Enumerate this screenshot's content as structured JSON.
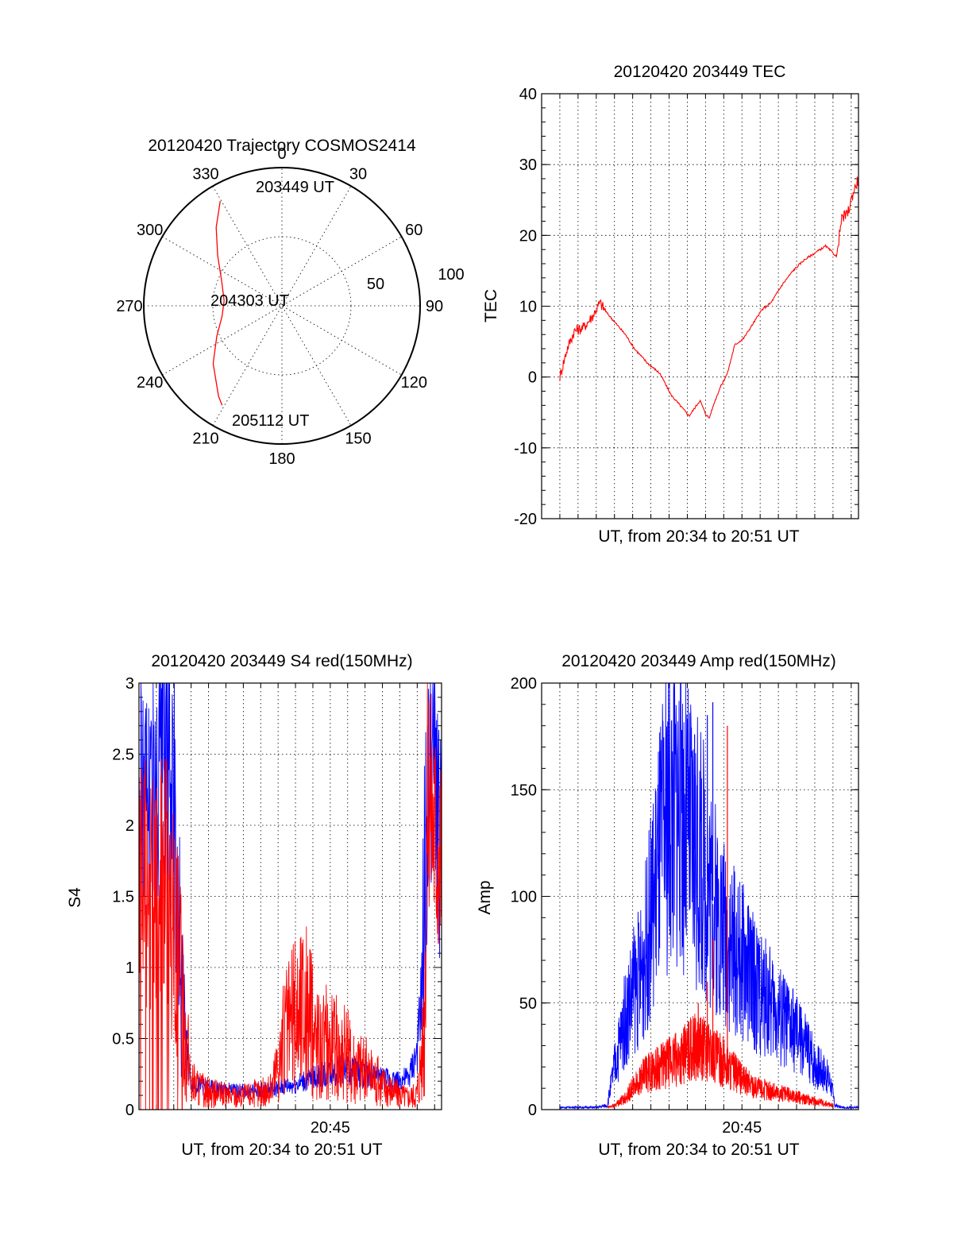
{
  "chart_data": [
    {
      "type": "polar",
      "title": "20120420 Trajectory COSMOS2414",
      "azimuth_labels": [
        "0",
        "30",
        "60",
        "90",
        "120",
        "150",
        "180",
        "210",
        "240",
        "270",
        "300",
        "330"
      ],
      "ring_labels": [
        "50",
        "100"
      ],
      "rlim": [
        0,
        100
      ],
      "trajectory": {
        "color": "#ff0000",
        "points_az_r": [
          [
            -30.5,
            88
          ],
          [
            -40,
            74
          ],
          [
            -52,
            59
          ],
          [
            -68,
            47
          ],
          [
            -85,
            42
          ],
          [
            -100,
            44
          ],
          [
            -115,
            52
          ],
          [
            -130,
            65
          ],
          [
            -145,
            80
          ],
          [
            -149,
            84
          ]
        ]
      },
      "annotations": [
        "203449 UT",
        "204303 UT",
        "205112 UT"
      ]
    },
    {
      "type": "line",
      "title": "20120420 203449 TEC",
      "xlabel": "UT, from 20:34 to 20:51 UT",
      "ylabel": "TEC",
      "xlim": [
        34.0,
        51.4
      ],
      "ylim": [
        -20,
        40
      ],
      "yticks": [
        "-20",
        "-10",
        "0",
        "10",
        "20",
        "30",
        "40"
      ],
      "grid": true,
      "series": [
        {
          "color": "#ff0000",
          "x": [
            35.0,
            35.4,
            35.8,
            36.3,
            36.8,
            37.2,
            37.6,
            38.1,
            38.6,
            39.1,
            39.8,
            40.5,
            41.1,
            41.6,
            42.1,
            42.7,
            43.0,
            43.2,
            43.5,
            43.8,
            44.2,
            44.6,
            45.1,
            45.6,
            46.1,
            46.6,
            47.2,
            47.8,
            48.4,
            49.0,
            49.6,
            50.2,
            50.4,
            50.5,
            50.8,
            51.1,
            51.4
          ],
          "y": [
            0.0,
            4.0,
            6.5,
            7.0,
            8.6,
            10.5,
            9.0,
            7.5,
            6.0,
            4.0,
            2.0,
            0.5,
            -2.5,
            -4.0,
            -5.5,
            -3.3,
            -5.2,
            -5.8,
            -3.5,
            -1.5,
            0.5,
            4.5,
            5.5,
            7.5,
            9.5,
            10.5,
            13.0,
            15.0,
            16.5,
            17.5,
            18.5,
            17.0,
            21.0,
            22.5,
            23.0,
            26.0,
            28.0
          ]
        }
      ]
    },
    {
      "type": "line",
      "title": "20120420 203449 S4 red(150MHz)",
      "xlabel": "UT, from 20:34 to 20:51 UT",
      "ylabel": "S4",
      "xlim": [
        34.0,
        51.4
      ],
      "ylim": [
        0,
        3
      ],
      "xticks": [
        {
          "value": 45.0,
          "label": "20:45"
        }
      ],
      "yticks": [
        "0",
        "0.5",
        "1",
        "1.5",
        "2",
        "2.5",
        "3"
      ],
      "grid": true,
      "series": [
        {
          "color": "#0000ff",
          "x": [
            34.0,
            34.5,
            35.0,
            35.5,
            36.0,
            36.3,
            36.6,
            36.8,
            37.0,
            37.5,
            38.0,
            39.0,
            40.0,
            41.0,
            42.0,
            43.0,
            44.0,
            45.0,
            46.0,
            47.0,
            48.0,
            48.9,
            49.5,
            50.0,
            50.3,
            50.5,
            51.0,
            51.4
          ],
          "y": [
            2.1,
            2.3,
            2.0,
            2.4,
            2.2,
            1.3,
            0.7,
            0.35,
            0.2,
            0.17,
            0.15,
            0.14,
            0.13,
            0.14,
            0.15,
            0.18,
            0.22,
            0.27,
            0.28,
            0.25,
            0.22,
            0.2,
            0.22,
            0.4,
            0.9,
            2.0,
            2.5,
            1.7
          ]
        },
        {
          "color": "#ff0000",
          "x": [
            34.0,
            34.5,
            35.0,
            35.5,
            36.0,
            36.4,
            36.7,
            37.0,
            37.5,
            38.0,
            39.0,
            40.0,
            41.0,
            41.6,
            42.0,
            42.5,
            43.0,
            43.5,
            44.0,
            44.5,
            45.0,
            45.5,
            46.0,
            46.5,
            47.0,
            48.0,
            48.8,
            49.5,
            50.0,
            50.4,
            50.6,
            51.0,
            51.4
          ],
          "y": [
            1.5,
            1.6,
            1.4,
            1.7,
            1.2,
            0.9,
            0.5,
            0.2,
            0.15,
            0.12,
            0.1,
            0.1,
            0.12,
            0.14,
            0.35,
            0.55,
            0.65,
            0.75,
            0.55,
            0.45,
            0.48,
            0.42,
            0.38,
            0.33,
            0.28,
            0.18,
            0.12,
            0.09,
            0.12,
            0.6,
            2.4,
            2.0,
            1.8
          ]
        }
      ]
    },
    {
      "type": "line",
      "title": "20120420 203449 Amp red(150MHz)",
      "xlabel": "UT, from 20:34 to 20:51 UT",
      "ylabel": "Amp",
      "xlim": [
        34.0,
        51.4
      ],
      "ylim": [
        0,
        200
      ],
      "xticks": [
        {
          "value": 45.0,
          "label": "20:45"
        }
      ],
      "yticks": [
        "0",
        "50",
        "100",
        "150",
        "200"
      ],
      "grid": true,
      "series": [
        {
          "color": "#0000ff",
          "x": [
            35.0,
            36.0,
            37.0,
            37.6,
            38.0,
            38.5,
            39.0,
            39.5,
            40.0,
            40.5,
            41.0,
            41.5,
            42.0,
            42.5,
            43.0,
            43.5,
            44.0,
            44.5,
            45.0,
            45.5,
            46.0,
            46.5,
            47.0,
            47.5,
            48.0,
            48.5,
            49.0,
            49.5,
            49.9,
            50.1,
            50.5,
            51.4
          ],
          "y": [
            1,
            1,
            1,
            2,
            20,
            40,
            55,
            65,
            90,
            120,
            140,
            145,
            130,
            120,
            110,
            95,
            85,
            75,
            70,
            62,
            55,
            50,
            45,
            40,
            35,
            30,
            22,
            18,
            12,
            2,
            1,
            1
          ],
          "peaks": [
            [
              41.7,
              178
            ],
            [
              42.4,
              176
            ],
            [
              43.1,
              185
            ],
            [
              43.4,
              191
            ],
            [
              40.4,
              120
            ],
            [
              46.2,
              60
            ],
            [
              47.2,
              58
            ]
          ]
        },
        {
          "color": "#ff0000",
          "x": [
            37.6,
            38.0,
            38.5,
            39.0,
            39.5,
            40.0,
            40.5,
            41.0,
            41.5,
            42.0,
            42.5,
            43.0,
            43.5,
            44.0,
            44.5,
            45.0,
            45.5,
            46.0,
            46.5,
            47.0,
            47.5,
            48.0,
            48.5,
            49.0,
            49.5,
            50.0
          ],
          "y": [
            1,
            2,
            5,
            10,
            15,
            18,
            20,
            22,
            24,
            27,
            30,
            28,
            25,
            22,
            18,
            14,
            12,
            10,
            9,
            8,
            7,
            6,
            5,
            4,
            3,
            2
          ],
          "peaks": [
            [
              43.4,
              80
            ],
            [
              44.2,
              180
            ],
            [
              43.1,
              60
            ],
            [
              42.6,
              50
            ]
          ]
        }
      ]
    }
  ]
}
